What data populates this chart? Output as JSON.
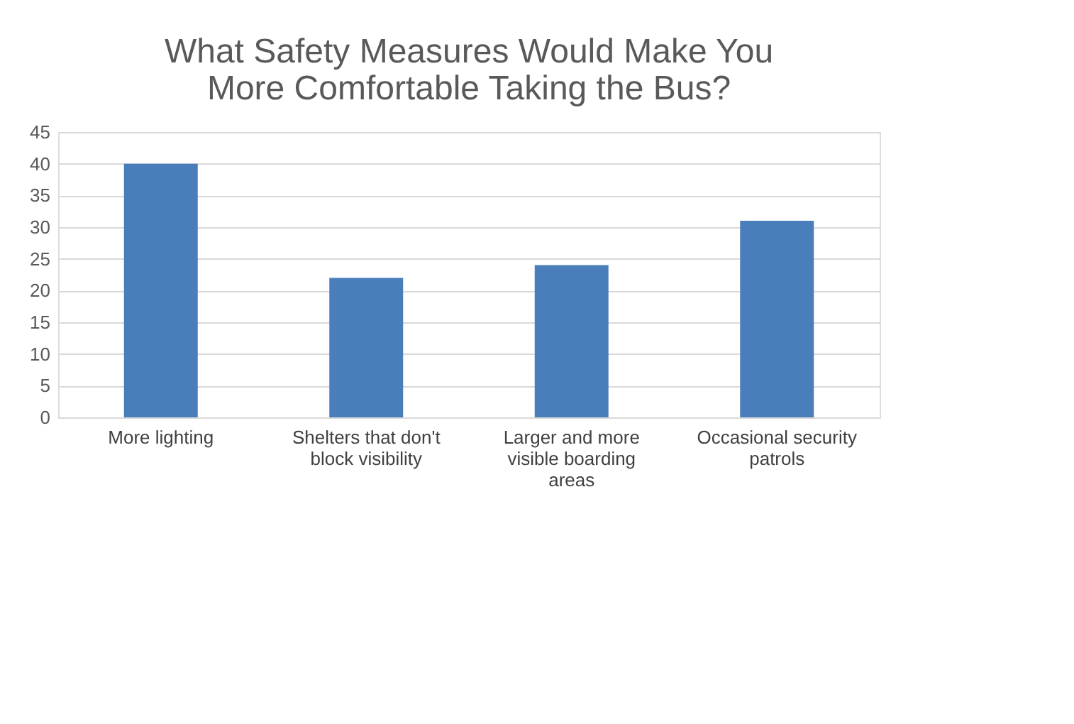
{
  "chart_data": {
    "type": "bar",
    "title": "What Safety Measures Would Make You More Comfortable Taking the Bus?",
    "categories": [
      "More lighting",
      "Shelters that don't block visibility",
      "Larger and more visible boarding areas",
      "Occasional security patrols"
    ],
    "values": [
      40,
      22,
      24,
      31
    ],
    "color": "#4a7ebb",
    "ylim": [
      0,
      45
    ],
    "yticks": [
      0,
      5,
      10,
      15,
      20,
      25,
      30,
      35,
      40,
      45
    ],
    "grid": "y"
  }
}
